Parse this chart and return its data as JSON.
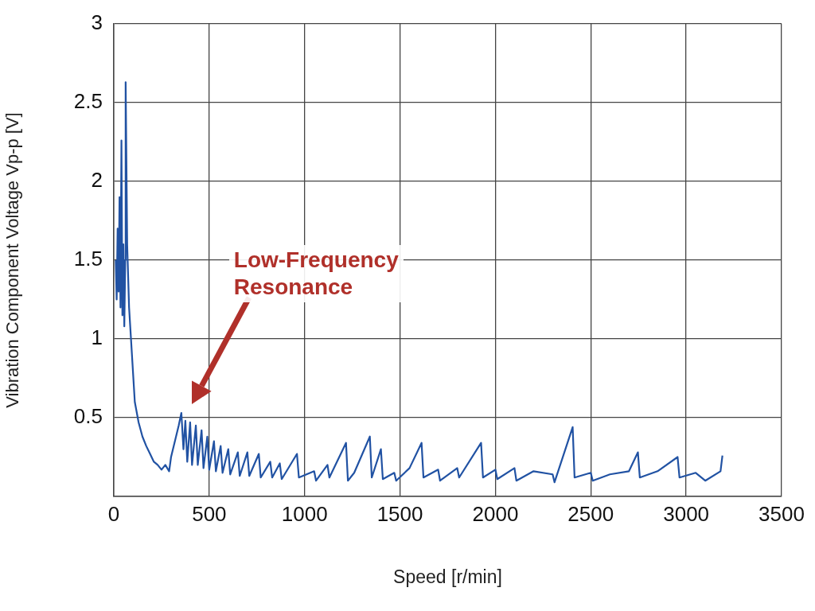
{
  "chart_data": {
    "type": "line",
    "xlabel": "Speed [r/min]",
    "ylabel": "Vibration Component Voltage Vp-p [V]",
    "x": [
      10,
      15,
      20,
      25,
      30,
      35,
      40,
      45,
      50,
      55,
      60,
      62,
      70,
      80,
      95,
      110,
      130,
      150,
      170,
      190,
      210,
      230,
      250,
      270,
      290,
      300,
      320,
      340,
      354,
      365,
      375,
      385,
      400,
      410,
      430,
      440,
      460,
      470,
      490,
      500,
      525,
      535,
      560,
      570,
      600,
      610,
      650,
      660,
      700,
      710,
      760,
      770,
      820,
      830,
      870,
      880,
      960,
      970,
      1050,
      1060,
      1120,
      1130,
      1217,
      1227,
      1260,
      1342,
      1352,
      1400,
      1410,
      1470,
      1480,
      1550,
      1613,
      1623,
      1700,
      1710,
      1800,
      1810,
      1925,
      1935,
      2000,
      2010,
      2100,
      2110,
      2200,
      2300,
      2310,
      2405,
      2415,
      2500,
      2510,
      2600,
      2700,
      2747,
      2757,
      2850,
      2955,
      2965,
      3050,
      3100,
      3180,
      3190
    ],
    "series": [
      {
        "color": "#2152a3",
        "values": [
          1.5,
          1.25,
          1.7,
          1.3,
          1.9,
          1.2,
          2.26,
          1.15,
          1.6,
          1.08,
          1.5,
          2.63,
          1.6,
          1.2,
          0.9,
          0.6,
          0.47,
          0.38,
          0.32,
          0.27,
          0.22,
          0.2,
          0.17,
          0.2,
          0.16,
          0.25,
          0.35,
          0.45,
          0.53,
          0.3,
          0.48,
          0.22,
          0.47,
          0.2,
          0.45,
          0.2,
          0.42,
          0.18,
          0.38,
          0.17,
          0.35,
          0.16,
          0.32,
          0.15,
          0.3,
          0.14,
          0.28,
          0.13,
          0.28,
          0.13,
          0.27,
          0.12,
          0.22,
          0.12,
          0.21,
          0.11,
          0.27,
          0.12,
          0.16,
          0.1,
          0.2,
          0.12,
          0.34,
          0.1,
          0.15,
          0.38,
          0.12,
          0.3,
          0.11,
          0.15,
          0.1,
          0.18,
          0.34,
          0.12,
          0.17,
          0.1,
          0.18,
          0.12,
          0.34,
          0.12,
          0.17,
          0.11,
          0.18,
          0.1,
          0.16,
          0.14,
          0.09,
          0.44,
          0.12,
          0.15,
          0.1,
          0.14,
          0.16,
          0.28,
          0.12,
          0.16,
          0.25,
          0.12,
          0.15,
          0.1,
          0.16,
          0.26
        ]
      }
    ],
    "xlim": [
      0,
      3500
    ],
    "xticks": [
      0,
      500,
      1000,
      1500,
      2000,
      2500,
      3000,
      3500
    ],
    "ylim": [
      0,
      3
    ],
    "yticks": [
      {
        "value": 0,
        "label": null
      },
      0.5,
      1,
      1.5,
      2,
      2.5,
      3
    ],
    "grid": true,
    "legend": false,
    "marker": "none",
    "line_style": "solid",
    "annotations": [
      "Low-Frequency\nResonance"
    ]
  }
}
